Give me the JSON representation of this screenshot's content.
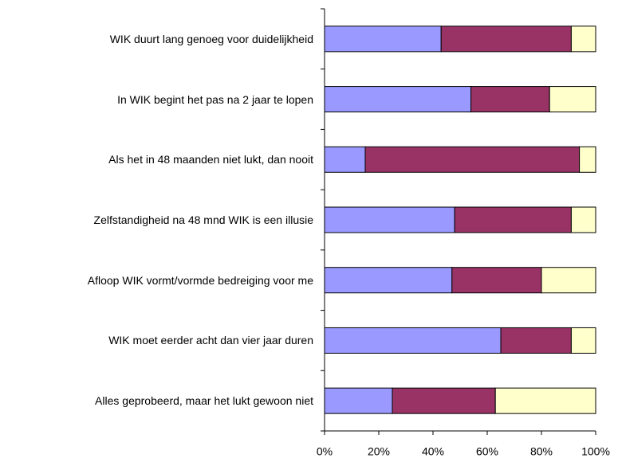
{
  "chart_data": {
    "type": "stacked_bar_horizontal",
    "categories": [
      "WIK duurt lang genoeg voor duidelijkheid",
      "In WIK begint het pas na 2 jaar te lopen",
      "Als het in 48 maanden niet lukt, dan nooit",
      "Zelfstandigheid na 48 mnd WIK is een illusie",
      "Afloop WIK vormt/vormde bedreiging voor me",
      "WIK moet eerder acht dan vier jaar duren",
      "Alles geprobeerd, maar het lukt gewoon niet"
    ],
    "series": [
      {
        "color": "#9999ff",
        "values": [
          43,
          54,
          15,
          48,
          47,
          65,
          25
        ]
      },
      {
        "color": "#993366",
        "values": [
          48,
          29,
          79,
          43,
          33,
          26,
          38
        ]
      },
      {
        "color": "#ffffcc",
        "values": [
          9,
          17,
          6,
          9,
          20,
          9,
          37
        ]
      }
    ],
    "xlim": [
      0,
      100
    ],
    "xticks": [
      {
        "value": 0,
        "label": "0%"
      },
      {
        "value": 20,
        "label": "20%"
      },
      {
        "value": 40,
        "label": "40%"
      },
      {
        "value": 60,
        "label": "60%"
      },
      {
        "value": 80,
        "label": "80%"
      },
      {
        "value": 100,
        "label": "100%"
      }
    ],
    "grid": false
  }
}
